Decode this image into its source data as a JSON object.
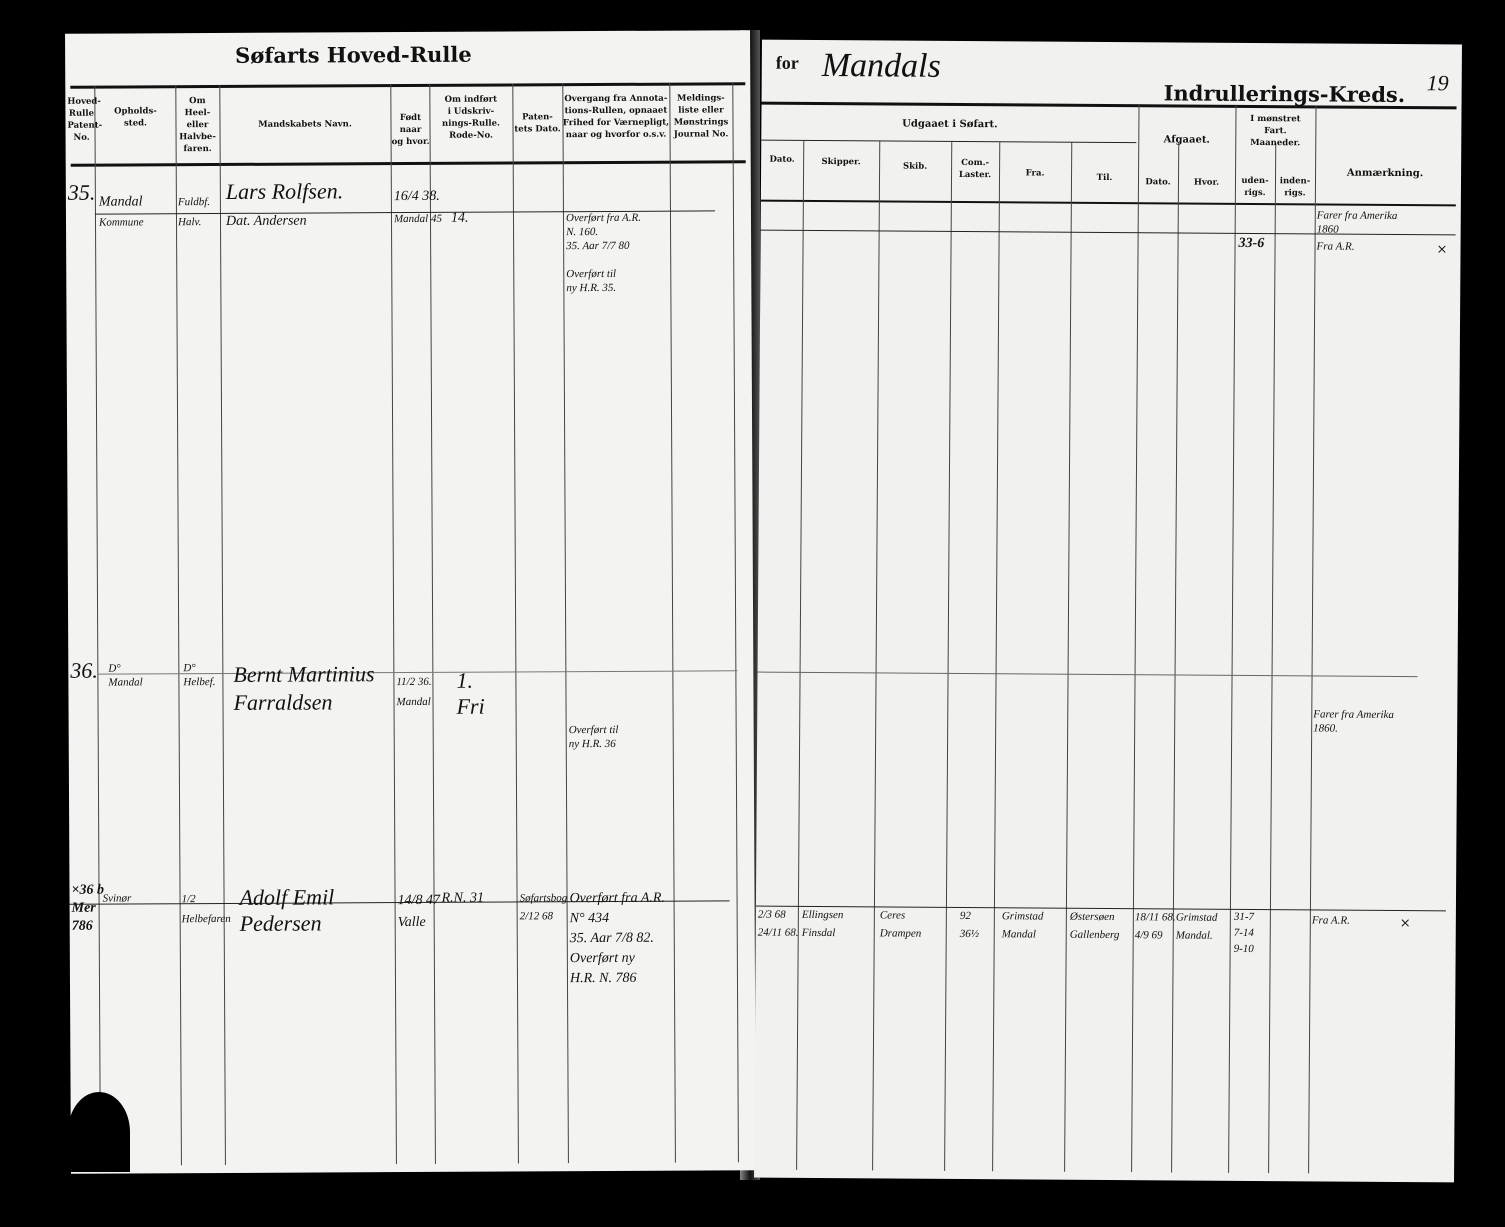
{
  "left_page": {
    "title": "Søfarts Hoved-Rulle",
    "headers": [
      "Hoved-\nRulle\nPatent-\nNo.",
      "Opholds-\nsted.",
      "Om Heel-\neller\nHalvbe-\nfaren.",
      "Mandskabets Navn.",
      "Født naar\nog hvor.",
      "Om indført\ni Udskriv-\nnings-Rulle.\nRode-No.",
      "Paten-\ntets Dato.",
      "Overgang fra Annota-\ntions-Rullen, opnaaet\nFrihed for Værnepligt,\nnaar og hvorfor o.s.v.",
      "Meldings-\nliste eller\nMønstrings\nJournal No."
    ],
    "entries": [
      {
        "no": "35.",
        "place": "Mandal",
        "place2": "Kommune",
        "type": "Fuldbf.",
        "type2": "Halv.",
        "name": "Lars Rolfsen.",
        "name2": "Dat. Andersen",
        "born": "16/4 38.",
        "born2": "Mandal 45",
        "rode": "14.",
        "transfer": "Overført fra A.R.\nN. 160.\n35. Aar 7/7 80\n\nOverført til\nny H.R. 35."
      },
      {
        "no": "36.",
        "place": "D°\nMandal",
        "type": "D°\nHelbef.",
        "name": "Bernt Martinius\nFarraldsen",
        "born": "11/2 36.\nMandal",
        "rode": "1.\nFri",
        "transfer": "Overført til\nny H.R. 36"
      },
      {
        "no": "×36 b\nMer\n786",
        "place": "Svinør",
        "type": "1/2\nHelbefaren",
        "name": "Adolf Emil\nPedersen",
        "born": "14/8 47\nValle",
        "rode": "R.N. 31",
        "patent": "Søfartsbog\n2/12 68",
        "transfer": "Overført fra A.R.\nN° 434\n35. Aar 7/8 82.\nOverført ny\nH.R. N. 786"
      }
    ]
  },
  "right_page": {
    "for_label": "for",
    "district": "Mandals",
    "title": "Indrullerings-Kreds.",
    "page_number": "19",
    "group_headers": {
      "udgaaet": "Udgaaet i Søfart.",
      "afgaaet": "Afgaaet.",
      "monstret": "I mønstret\nFart.\nMaaneder."
    },
    "headers": [
      "Dato.",
      "Skipper.",
      "Skib.",
      "Com.-\nLaster.",
      "Fra.",
      "Til.",
      "Dato.",
      "Hvor.",
      "uden-\nrigs.",
      "inden-\nrigs.",
      "Anmærkning."
    ],
    "entries": [
      {
        "udenrigs": "33-6",
        "remark": "Farer fra Amerika\n1860",
        "remark2": "Fra A.R.",
        "mark": "×"
      },
      {
        "remark": "Farer fra Amerika\n1860."
      },
      {
        "dato": "2/3 68\n24/11 68.",
        "skipper": "Ellingsen\nFinsdal",
        "skib": "Ceres\nDrampen",
        "laster": "92\n36½",
        "fra": "Grimstad\nMandal",
        "til": "Østersøen\nGallenberg",
        "afg_dato": "18/11 68.\n4/9 69",
        "hvor": "Grimstad\nMandal.",
        "udenrigs": "31-7\n7-14\n9-10",
        "remark": "Fra A.R.",
        "mark": "×"
      }
    ]
  }
}
